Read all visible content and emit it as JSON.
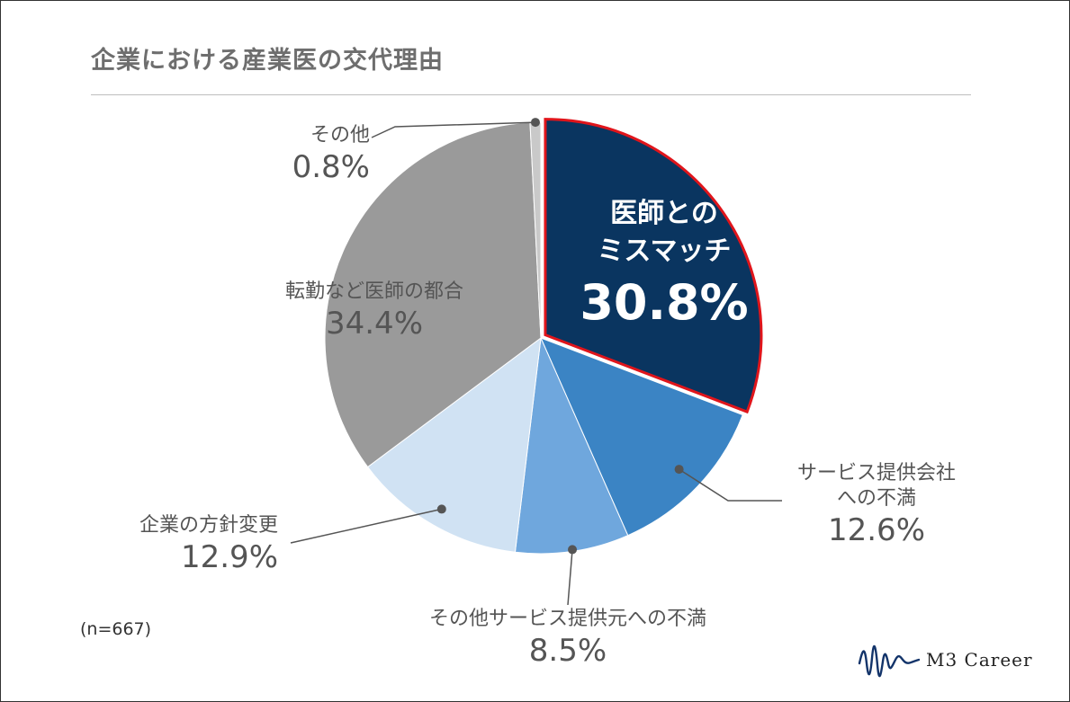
{
  "title": "企業における産業医の交代理由",
  "note": "(n=667)",
  "logo": {
    "text": "M3 Career",
    "icon": "waveform-logo-icon"
  },
  "colors": {
    "navy": "#0a3560",
    "highlight_border": "#e0151b",
    "blue": "#3b84c4",
    "mid_blue": "#6fa7dd",
    "light_blue": "#d0e2f3",
    "gray": "#9a9a9a",
    "light_gray": "#c9c9c9",
    "text": "#555555"
  },
  "chart_data": {
    "type": "pie",
    "title": "企業における産業医の交代理由",
    "start_angle_deg": 0,
    "direction": "clockwise",
    "slices": [
      {
        "label": "医師とのミスマッチ",
        "value": 30.8,
        "display": "30.8%",
        "color": "#0a3560",
        "highlighted": true,
        "label_lines": [
          "医師との",
          "ミスマッチ"
        ]
      },
      {
        "label": "サービス提供会社への不満",
        "value": 12.6,
        "display": "12.6%",
        "color": "#3b84c4",
        "label_lines": [
          "サービス提供会社",
          "への不満"
        ]
      },
      {
        "label": "その他サービス提供元への不満",
        "value": 8.5,
        "display": "8.5%",
        "color": "#6fa7dd",
        "label_lines": [
          "その他サービス提供元への不満"
        ]
      },
      {
        "label": "企業の方針変更",
        "value": 12.9,
        "display": "12.9%",
        "color": "#d0e2f3",
        "label_lines": [
          "企業の方針変更"
        ]
      },
      {
        "label": "転勤など医師の都合",
        "value": 34.4,
        "display": "34.4%",
        "color": "#9a9a9a",
        "label_lines": [
          "転勤など医師の都合"
        ]
      },
      {
        "label": "その他",
        "value": 0.8,
        "display": "0.8%",
        "color": "#c9c9c9",
        "label_lines": [
          "その他"
        ]
      }
    ]
  }
}
